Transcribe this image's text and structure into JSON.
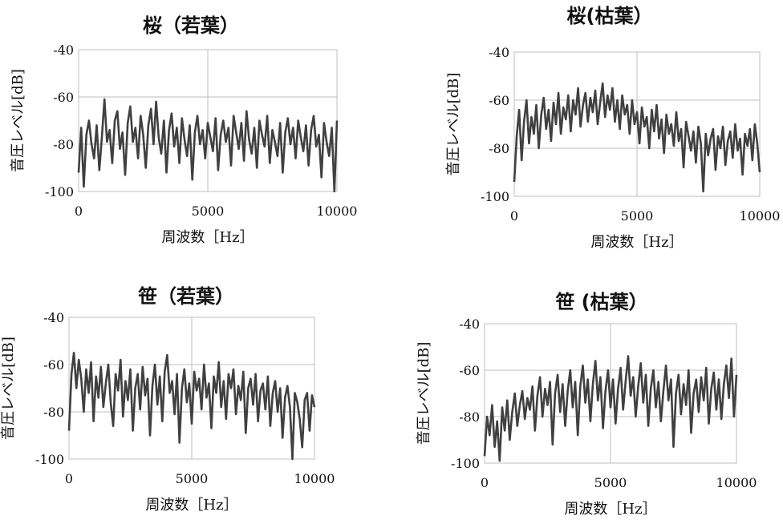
{
  "chart_data": [
    {
      "type": "line",
      "title": "桜（若葉）",
      "xlabel": "周波数［Hz］",
      "ylabel": "音圧レベル[dB]",
      "xlim": [
        0,
        10000
      ],
      "ylim": [
        -100,
        -40
      ],
      "x_ticks": [
        "0",
        "5000",
        "10000"
      ],
      "y_ticks": [
        "-40",
        "-60",
        "-80",
        "-100"
      ],
      "grid": "major",
      "color": "#404040",
      "series": [
        {
          "x": [
            0,
            100,
            200,
            300,
            400,
            500,
            600,
            700,
            800,
            900,
            1000,
            1100,
            1200,
            1300,
            1400,
            1500,
            1600,
            1700,
            1800,
            1900,
            2000,
            2100,
            2200,
            2300,
            2400,
            2500,
            2600,
            2700,
            2800,
            2900,
            3000,
            3100,
            3200,
            3300,
            3400,
            3500,
            3600,
            3700,
            3800,
            3900,
            4000,
            4100,
            4200,
            4300,
            4400,
            4500,
            4600,
            4700,
            4800,
            4900,
            5000,
            5100,
            5200,
            5300,
            5400,
            5500,
            5600,
            5700,
            5800,
            5900,
            6000,
            6100,
            6200,
            6300,
            6400,
            6500,
            6600,
            6700,
            6800,
            6900,
            7000,
            7100,
            7200,
            7300,
            7400,
            7500,
            7600,
            7700,
            7800,
            7900,
            8000,
            8100,
            8200,
            8300,
            8400,
            8500,
            8600,
            8700,
            8800,
            8900,
            9000,
            9100,
            9200,
            9300,
            9400,
            9500,
            9600,
            9700,
            9800,
            9900,
            10000
          ],
          "y": [
            -92,
            -73,
            -98,
            -76,
            -70,
            -80,
            -86,
            -72,
            -91,
            -77,
            -61,
            -79,
            -74,
            -88,
            -70,
            -66,
            -82,
            -75,
            -93,
            -71,
            -64,
            -79,
            -73,
            -86,
            -68,
            -76,
            -90,
            -72,
            -65,
            -80,
            -62,
            -77,
            -84,
            -70,
            -92,
            -74,
            -67,
            -81,
            -73,
            -88,
            -69,
            -78,
            -85,
            -72,
            -95,
            -75,
            -68,
            -80,
            -74,
            -86,
            -71,
            -77,
            -83,
            -69,
            -91,
            -76,
            -70,
            -79,
            -73,
            -89,
            -68,
            -75,
            -82,
            -71,
            -87,
            -66,
            -78,
            -84,
            -73,
            -90,
            -70,
            -76,
            -81,
            -68,
            -88,
            -74,
            -79,
            -85,
            -71,
            -92,
            -75,
            -69,
            -80,
            -73,
            -86,
            -70,
            -77,
            -83,
            -72,
            -89,
            -74,
            -68,
            -81,
            -76,
            -94,
            -71,
            -79,
            -85,
            -73,
            -100,
            -70
          ]
        }
      ]
    },
    {
      "type": "line",
      "title": "桜(枯葉）",
      "xlabel": "周波数［Hz］",
      "ylabel": "音圧レベル[dB]",
      "xlim": [
        0,
        10000
      ],
      "ylim": [
        -100,
        -40
      ],
      "x_ticks": [
        "0",
        "5000",
        "10000"
      ],
      "y_ticks": [
        "-40",
        "-60",
        "-80",
        "-100"
      ],
      "grid": "major",
      "color": "#404040",
      "series": [
        {
          "x": [
            0,
            100,
            200,
            300,
            400,
            500,
            600,
            700,
            800,
            900,
            1000,
            1100,
            1200,
            1300,
            1400,
            1500,
            1600,
            1700,
            1800,
            1900,
            2000,
            2100,
            2200,
            2300,
            2400,
            2500,
            2600,
            2700,
            2800,
            2900,
            3000,
            3100,
            3200,
            3300,
            3400,
            3500,
            3600,
            3700,
            3800,
            3900,
            4000,
            4100,
            4200,
            4300,
            4400,
            4500,
            4600,
            4700,
            4800,
            4900,
            5000,
            5100,
            5200,
            5300,
            5400,
            5500,
            5600,
            5700,
            5800,
            5900,
            6000,
            6100,
            6200,
            6300,
            6400,
            6500,
            6600,
            6700,
            6800,
            6900,
            7000,
            7100,
            7200,
            7300,
            7400,
            7500,
            7600,
            7700,
            7800,
            7900,
            8000,
            8100,
            8200,
            8300,
            8400,
            8500,
            8600,
            8700,
            8800,
            8900,
            9000,
            9100,
            9200,
            9300,
            9400,
            9500,
            9600,
            9700,
            9800,
            9900,
            10000
          ],
          "y": [
            -94,
            -75,
            -64,
            -85,
            -69,
            -60,
            -78,
            -67,
            -74,
            -62,
            -80,
            -66,
            -59,
            -72,
            -64,
            -77,
            -61,
            -70,
            -57,
            -74,
            -63,
            -68,
            -58,
            -73,
            -60,
            -66,
            -55,
            -71,
            -62,
            -57,
            -69,
            -59,
            -65,
            -56,
            -70,
            -61,
            -53,
            -67,
            -58,
            -64,
            -55,
            -69,
            -60,
            -72,
            -58,
            -66,
            -62,
            -74,
            -60,
            -70,
            -65,
            -78,
            -63,
            -71,
            -67,
            -80,
            -64,
            -73,
            -62,
            -76,
            -68,
            -82,
            -66,
            -74,
            -70,
            -79,
            -65,
            -77,
            -72,
            -88,
            -69,
            -75,
            -81,
            -73,
            -86,
            -71,
            -78,
            -98,
            -74,
            -83,
            -76,
            -72,
            -89,
            -75,
            -80,
            -71,
            -87,
            -77,
            -73,
            -84,
            -70,
            -81,
            -76,
            -91,
            -74,
            -79,
            -72,
            -85,
            -70,
            -78,
            -90
          ]
        }
      ]
    },
    {
      "type": "line",
      "title": "笹（若葉）",
      "xlabel": "周波数［Hz］",
      "ylabel": "音圧レベル[dB]",
      "xlim": [
        0,
        10000
      ],
      "ylim": [
        -100,
        -40
      ],
      "x_ticks": [
        "0",
        "5000",
        "10000"
      ],
      "y_ticks": [
        "-40",
        "-60",
        "-80",
        "-100"
      ],
      "grid": "major",
      "color": "#404040",
      "series": [
        {
          "x": [
            0,
            100,
            200,
            300,
            400,
            500,
            600,
            700,
            800,
            900,
            1000,
            1100,
            1200,
            1300,
            1400,
            1500,
            1600,
            1700,
            1800,
            1900,
            2000,
            2100,
            2200,
            2300,
            2400,
            2500,
            2600,
            2700,
            2800,
            2900,
            3000,
            3100,
            3200,
            3300,
            3400,
            3500,
            3600,
            3700,
            3800,
            3900,
            4000,
            4100,
            4200,
            4300,
            4400,
            4500,
            4600,
            4700,
            4800,
            4900,
            5000,
            5100,
            5200,
            5300,
            5400,
            5500,
            5600,
            5700,
            5800,
            5900,
            6000,
            6100,
            6200,
            6300,
            6400,
            6500,
            6600,
            6700,
            6800,
            6900,
            7000,
            7100,
            7200,
            7300,
            7400,
            7500,
            7600,
            7700,
            7800,
            7900,
            8000,
            8100,
            8200,
            8300,
            8400,
            8500,
            8600,
            8700,
            8800,
            8900,
            9000,
            9100,
            9200,
            9300,
            9400,
            9500,
            9600,
            9700,
            9800,
            9900,
            10000
          ],
          "y": [
            -88,
            -64,
            -55,
            -70,
            -58,
            -66,
            -80,
            -62,
            -72,
            -59,
            -84,
            -65,
            -74,
            -61,
            -78,
            -68,
            -60,
            -76,
            -86,
            -64,
            -71,
            -58,
            -82,
            -67,
            -75,
            -62,
            -88,
            -70,
            -64,
            -79,
            -61,
            -73,
            -66,
            -90,
            -69,
            -60,
            -77,
            -65,
            -84,
            -63,
            -56,
            -72,
            -67,
            -81,
            -64,
            -93,
            -70,
            -62,
            -76,
            -68,
            -85,
            -63,
            -71,
            -66,
            -79,
            -60,
            -74,
            -68,
            -87,
            -65,
            -72,
            -59,
            -78,
            -67,
            -83,
            -64,
            -70,
            -62,
            -81,
            -69,
            -75,
            -63,
            -89,
            -70,
            -66,
            -77,
            -64,
            -84,
            -71,
            -68,
            -79,
            -65,
            -86,
            -72,
            -67,
            -80,
            -70,
            -91,
            -74,
            -69,
            -78,
            -100,
            -72,
            -76,
            -83,
            -95,
            -75,
            -72,
            -88,
            -73,
            -78
          ]
        }
      ]
    },
    {
      "type": "line",
      "title": "笹 (枯葉）",
      "xlabel": "周波数［Hz］",
      "ylabel": "音圧レベル[dB]",
      "xlim": [
        0,
        10000
      ],
      "ylim": [
        -100,
        -40
      ],
      "x_ticks": [
        "0",
        "5000",
        "10000"
      ],
      "y_ticks": [
        "-40",
        "-60",
        "-80",
        "-100"
      ],
      "grid": "major",
      "color": "#404040",
      "series": [
        {
          "x": [
            0,
            100,
            200,
            300,
            400,
            500,
            600,
            700,
            800,
            900,
            1000,
            1100,
            1200,
            1300,
            1400,
            1500,
            1600,
            1700,
            1800,
            1900,
            2000,
            2100,
            2200,
            2300,
            2400,
            2500,
            2600,
            2700,
            2800,
            2900,
            3000,
            3100,
            3200,
            3300,
            3400,
            3500,
            3600,
            3700,
            3800,
            3900,
            4000,
            4100,
            4200,
            4300,
            4400,
            4500,
            4600,
            4700,
            4800,
            4900,
            5000,
            5100,
            5200,
            5300,
            5400,
            5500,
            5600,
            5700,
            5800,
            5900,
            6000,
            6100,
            6200,
            6300,
            6400,
            6500,
            6600,
            6700,
            6800,
            6900,
            7000,
            7100,
            7200,
            7300,
            7400,
            7500,
            7600,
            7700,
            7800,
            7900,
            8000,
            8100,
            8200,
            8300,
            8400,
            8500,
            8600,
            8700,
            8800,
            8900,
            9000,
            9100,
            9200,
            9300,
            9400,
            9500,
            9600,
            9700,
            9800,
            9900,
            10000
          ],
          "y": [
            -97,
            -80,
            -88,
            -75,
            -93,
            -82,
            -99,
            -76,
            -86,
            -73,
            -90,
            -78,
            -70,
            -84,
            -75,
            -69,
            -81,
            -72,
            -77,
            -67,
            -86,
            -71,
            -63,
            -80,
            -68,
            -75,
            -65,
            -92,
            -70,
            -62,
            -78,
            -66,
            -84,
            -69,
            -60,
            -76,
            -65,
            -88,
            -67,
            -58,
            -74,
            -64,
            -82,
            -66,
            -56,
            -73,
            -63,
            -85,
            -69,
            -60,
            -76,
            -64,
            -83,
            -68,
            -59,
            -77,
            -65,
            -54,
            -71,
            -63,
            -80,
            -67,
            -57,
            -74,
            -62,
            -84,
            -68,
            -60,
            -76,
            -65,
            -82,
            -69,
            -58,
            -73,
            -64,
            -93,
            -70,
            -62,
            -79,
            -66,
            -75,
            -60,
            -87,
            -70,
            -64,
            -78,
            -63,
            -73,
            -59,
            -83,
            -68,
            -61,
            -77,
            -64,
            -81,
            -66,
            -58,
            -72,
            -55,
            -80,
            -62
          ]
        }
      ]
    }
  ]
}
